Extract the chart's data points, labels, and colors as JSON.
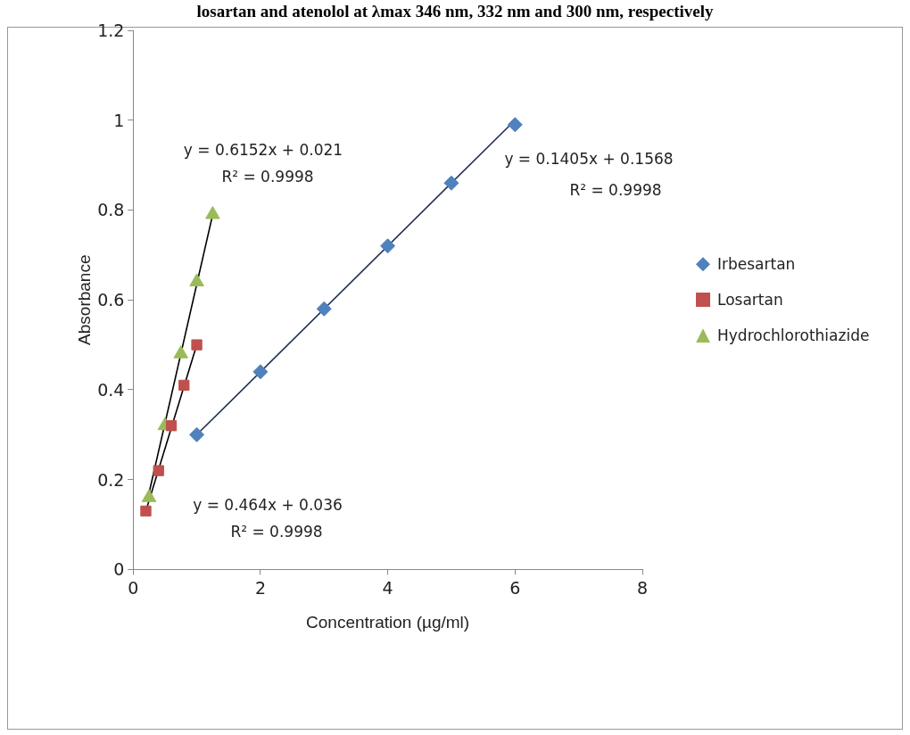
{
  "chart_data": {
    "type": "scatter",
    "title": "losartan and atenolol at λmax 346 nm, 332 nm and 300 nm, respectively",
    "xlabel": "Concentration (µg/ml)",
    "ylabel": "Absorbance",
    "xlim": [
      0,
      8
    ],
    "xticks": [
      0,
      2,
      4,
      6,
      8
    ],
    "ylim": [
      0,
      1.2
    ],
    "yticks": [
      0,
      0.2,
      0.4,
      0.6,
      0.8,
      1,
      1.2
    ],
    "grid": false,
    "legend": "right",
    "series": [
      {
        "name": "Irbesartan",
        "color": "#4f81bd",
        "marker": "diamond",
        "x": [
          1,
          2,
          3,
          4,
          5,
          6
        ],
        "values": [
          0.3,
          0.44,
          0.58,
          0.72,
          0.86,
          0.99
        ]
      },
      {
        "name": "Losartan",
        "color": "#c0504d",
        "marker": "square",
        "x": [
          0.2,
          0.4,
          0.6,
          0.8,
          1.0
        ],
        "values": [
          0.13,
          0.22,
          0.32,
          0.41,
          0.5
        ]
      },
      {
        "name": "Hydrochlorothiazide",
        "color": "#9bbb59",
        "marker": "triangle",
        "x": [
          0.25,
          0.5,
          0.75,
          1.0,
          1.25
        ],
        "values": [
          0.16,
          0.32,
          0.48,
          0.64,
          0.79
        ]
      },
      {
        "type": "line",
        "color": "#1f2f4f",
        "marker": "none",
        "x": [
          1,
          6
        ],
        "values": [
          0.3,
          1.0
        ]
      },
      {
        "type": "line",
        "color": "#000000",
        "marker": "none",
        "x": [
          0.2,
          1.0
        ],
        "values": [
          0.13,
          0.5
        ]
      },
      {
        "type": "line",
        "color": "#000000",
        "marker": "none",
        "x": [
          0.25,
          1.25
        ],
        "values": [
          0.17,
          0.79
        ]
      }
    ],
    "annotations": [
      "y = 0.6152x + 0.021",
      "R² = 0.9998",
      "y = 0.1405x + 0.1568",
      "R² = 0.9998",
      "y = 0.464x + 0.036",
      "R² = 0.9998"
    ]
  }
}
